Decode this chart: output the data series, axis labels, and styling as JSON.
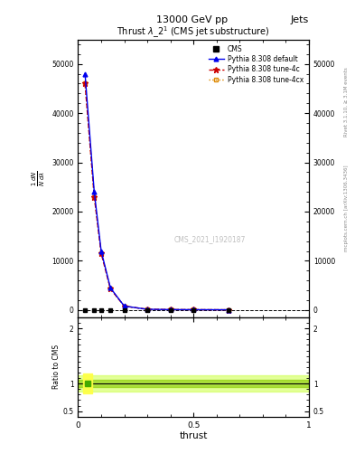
{
  "header_left": "13000 GeV pp",
  "header_right": "Jets",
  "plot_title": "Thrust $\\lambda\\_2^1$ (CMS jet substructure)",
  "watermark": "CMS_2021_I1920187",
  "right_label_top": "Rivet 3.1.10, ≥ 3.1M events",
  "right_label_bottom": "mcplots.cern.ch [arXiv:1306.3436]",
  "xlabel": "thrust",
  "ylabel_ratio": "Ratio to CMS",
  "thrust_x": [
    0.03,
    0.07,
    0.1,
    0.14,
    0.2,
    0.3,
    0.4,
    0.5,
    0.65
  ],
  "default_y": [
    48000,
    24000,
    12000,
    4500,
    800,
    150,
    90,
    70,
    50
  ],
  "tune4c_y": [
    46000,
    23000,
    11500,
    4300,
    790,
    148,
    88,
    68,
    48
  ],
  "tune4cx_y": [
    46000,
    23000,
    11500,
    4300,
    790,
    148,
    88,
    68,
    48
  ],
  "cms_x": [
    0.03,
    0.07,
    0.1,
    0.14,
    0.2,
    0.3,
    0.4,
    0.5,
    0.65
  ],
  "cms_y": [
    0,
    0,
    0,
    0,
    0,
    0,
    0,
    0,
    10
  ],
  "color_default": "#0000ee",
  "color_tune4c": "#cc0000",
  "color_tune4cx": "#dd8800",
  "color_cms": "#000000",
  "xlim": [
    0,
    1
  ],
  "ylim_main_low": -1500,
  "ylim_main_high": 55000,
  "ylim_ratio_low": 0.4,
  "ylim_ratio_high": 2.2,
  "yticks_main": [
    0,
    10000,
    20000,
    30000,
    40000,
    50000
  ],
  "ytick_labels_main": [
    "0",
    "10000",
    "20000",
    "30000",
    "40000",
    "50000"
  ],
  "yticks_ratio": [
    0.5,
    1.0,
    2.0
  ],
  "ytick_labels_ratio": [
    "0.5",
    "1",
    "2"
  ],
  "xticks": [
    0,
    0.5,
    1.0
  ],
  "xtick_labels": [
    "0",
    "0.5",
    "1"
  ],
  "figsize": [
    3.93,
    5.12
  ],
  "dpi": 100
}
